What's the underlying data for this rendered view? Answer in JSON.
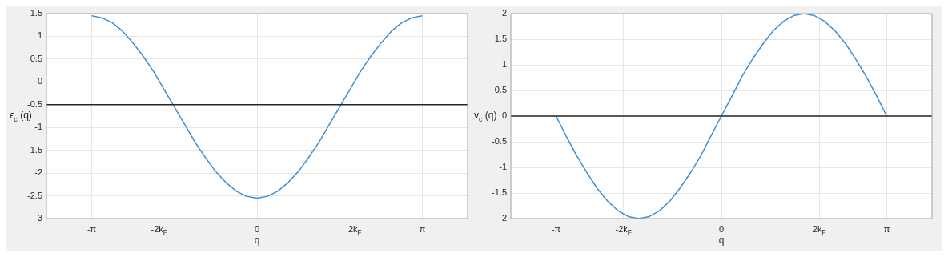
{
  "chart_data": [
    {
      "type": "line",
      "xlabel": "q",
      "ylabel": "ϵ$_{c}$ (q)",
      "x": [
        -3.14,
        -2.95,
        -2.75,
        -2.55,
        -2.36,
        -2.16,
        -1.96,
        -1.77,
        -1.57,
        -1.37,
        -1.18,
        -0.98,
        -0.79,
        -0.59,
        -0.39,
        -0.2,
        0,
        0.2,
        0.39,
        0.59,
        0.79,
        0.98,
        1.18,
        1.37,
        1.57,
        1.77,
        1.96,
        2.16,
        2.36,
        2.55,
        2.75,
        2.95,
        3.14
      ],
      "series": [
        {
          "color": "#3a8fd0",
          "values": [
            1.45,
            1.41,
            1.3,
            1.11,
            0.86,
            0.56,
            0.22,
            -0.16,
            -0.55,
            -0.94,
            -1.32,
            -1.66,
            -1.96,
            -2.21,
            -2.4,
            -2.51,
            -2.55,
            -2.51,
            -2.4,
            -2.21,
            -1.96,
            -1.66,
            -1.32,
            -0.94,
            -0.55,
            -0.16,
            0.22,
            0.56,
            0.86,
            1.11,
            1.3,
            1.41,
            1.45
          ]
        }
      ],
      "xlim": [
        -4,
        4
      ],
      "xticks": [
        {
          "value": -3.14,
          "label": "-π"
        },
        {
          "value": -1.86,
          "label": "-2k$_{F}$"
        },
        0,
        {
          "value": 1.86,
          "label": "2k$_{F}$"
        },
        {
          "value": 3.14,
          "label": "π"
        }
      ],
      "ylim": [
        -3,
        1.5
      ],
      "yticks": [
        -3,
        -2.5,
        -2,
        -1.5,
        -1,
        -0.5,
        0,
        0.5,
        1,
        1.5
      ],
      "grid": true,
      "ref_lines": [
        {
          "axis": "y",
          "value": -0.5,
          "color": "#262626"
        }
      ]
    },
    {
      "type": "line",
      "xlabel": "q",
      "ylabel": "v$_{c}$ (q)",
      "x": [
        -3.14,
        -2.95,
        -2.75,
        -2.55,
        -2.36,
        -2.16,
        -1.96,
        -1.77,
        -1.57,
        -1.37,
        -1.18,
        -0.98,
        -0.79,
        -0.59,
        -0.39,
        -0.2,
        0,
        0.2,
        0.39,
        0.59,
        0.79,
        0.98,
        1.18,
        1.37,
        1.57,
        1.77,
        1.96,
        2.16,
        2.36,
        2.55,
        2.75,
        2.95,
        3.14
      ],
      "series": [
        {
          "color": "#3a8fd0",
          "values": [
            0,
            -0.39,
            -0.77,
            -1.11,
            -1.41,
            -1.66,
            -1.85,
            -1.96,
            -2,
            -1.96,
            -1.85,
            -1.66,
            -1.41,
            -1.11,
            -0.77,
            -0.39,
            0,
            0.39,
            0.77,
            1.11,
            1.41,
            1.66,
            1.85,
            1.96,
            2,
            1.96,
            1.85,
            1.66,
            1.41,
            1.11,
            0.77,
            0.39,
            0
          ]
        }
      ],
      "xlim": [
        -4,
        4
      ],
      "xticks": [
        {
          "value": -3.14,
          "label": "-π"
        },
        {
          "value": -1.86,
          "label": "-2k$_{F}$"
        },
        0,
        {
          "value": 1.86,
          "label": "2k$_{F}$"
        },
        {
          "value": 3.14,
          "label": "π"
        }
      ],
      "ylim": [
        -2,
        2
      ],
      "yticks": [
        -2,
        -1.5,
        -1,
        -0.5,
        0,
        0.5,
        1,
        1.5,
        2
      ],
      "grid": true,
      "ref_lines": [
        {
          "axis": "y",
          "value": 0,
          "color": "#262626"
        }
      ]
    }
  ]
}
